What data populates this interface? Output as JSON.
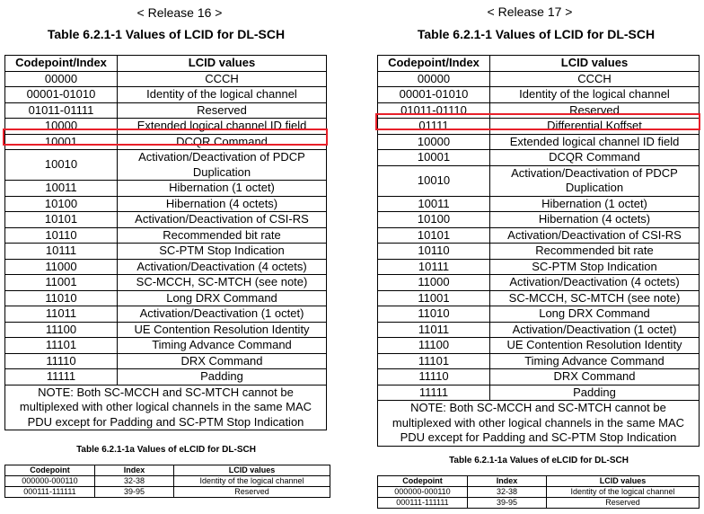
{
  "left": {
    "release": "< Release 16 >",
    "title": "Table 6.2.1-1 Values of LCID for DL-SCH",
    "headers": [
      "Codepoint/Index",
      "LCID values"
    ],
    "rows": [
      [
        "00000",
        "CCCH"
      ],
      [
        "00001-01010",
        "Identity of the logical channel"
      ],
      [
        "01011-01111",
        "Reserved"
      ],
      [
        "10000",
        "Extended logical channel ID field"
      ],
      [
        "10001",
        "DCQR Command"
      ],
      [
        "10010",
        "Activation/Deactivation of PDCP Duplication"
      ],
      [
        "10011",
        "Hibernation (1 octet)"
      ],
      [
        "10100",
        "Hibernation (4 octets)"
      ],
      [
        "10101",
        "Activation/Deactivation of CSI-RS"
      ],
      [
        "10110",
        "Recommended bit rate"
      ],
      [
        "10111",
        "SC-PTM Stop Indication"
      ],
      [
        "11000",
        "Activation/Deactivation (4 octets)"
      ],
      [
        "11001",
        "SC-MCCH, SC-MTCH (see note)"
      ],
      [
        "11010",
        "Long DRX Command"
      ],
      [
        "11011",
        "Activation/Deactivation (1 octet)"
      ],
      [
        "11100",
        "UE Contention Resolution Identity"
      ],
      [
        "11101",
        "Timing Advance Command"
      ],
      [
        "11110",
        "DRX Command"
      ],
      [
        "11111",
        "Padding"
      ]
    ],
    "note": "NOTE: Both SC-MCCH and SC-MTCH cannot be multiplexed with other logical channels in the same MAC PDU except for Padding and SC-PTM Stop Indication",
    "subtitle": "Table 6.2.1-1a Values of eLCID for DL-SCH",
    "sub_headers": [
      "Codepoint",
      "Index",
      "LCID values"
    ],
    "sub_rows": [
      [
        "000000-000110",
        "32-38",
        "Identity of the logical channel"
      ],
      [
        "000111-111111",
        "39-95",
        "Reserved"
      ]
    ]
  },
  "right": {
    "release": "< Release 17 >",
    "title": "Table 6.2.1-1 Values of LCID for DL-SCH",
    "headers": [
      "Codepoint/Index",
      "LCID values"
    ],
    "rows": [
      [
        "00000",
        "CCCH"
      ],
      [
        "00001-01010",
        "Identity of the logical channel"
      ],
      [
        "01011-01110",
        "Reserved"
      ],
      [
        "01111",
        "Differential Koffset"
      ],
      [
        "10000",
        "Extended logical channel ID field"
      ],
      [
        "10001",
        "DCQR Command"
      ],
      [
        "10010",
        "Activation/Deactivation of PDCP Duplication"
      ],
      [
        "10011",
        "Hibernation (1 octet)"
      ],
      [
        "10100",
        "Hibernation (4 octets)"
      ],
      [
        "10101",
        "Activation/Deactivation of CSI-RS"
      ],
      [
        "10110",
        "Recommended bit rate"
      ],
      [
        "10111",
        "SC-PTM Stop Indication"
      ],
      [
        "11000",
        "Activation/Deactivation (4 octets)"
      ],
      [
        "11001",
        "SC-MCCH, SC-MTCH (see note)"
      ],
      [
        "11010",
        "Long DRX Command"
      ],
      [
        "11011",
        "Activation/Deactivation (1 octet)"
      ],
      [
        "11100",
        "UE Contention Resolution Identity"
      ],
      [
        "11101",
        "Timing Advance Command"
      ],
      [
        "11110",
        "DRX Command"
      ],
      [
        "11111",
        "Padding"
      ]
    ],
    "note": "NOTE: Both SC-MCCH and SC-MTCH cannot be multiplexed with other logical channels in the same MAC PDU except for Padding and SC-PTM Stop Indication",
    "subtitle": "Table 6.2.1-1a Values of eLCID for DL-SCH",
    "sub_headers": [
      "Codepoint",
      "Index",
      "LCID values"
    ],
    "sub_rows": [
      [
        "000000-000110",
        "32-38",
        "Identity of the logical channel"
      ],
      [
        "000111-111111",
        "39-95",
        "Reserved"
      ]
    ]
  },
  "colors": {
    "highlight": "#e8202a"
  }
}
